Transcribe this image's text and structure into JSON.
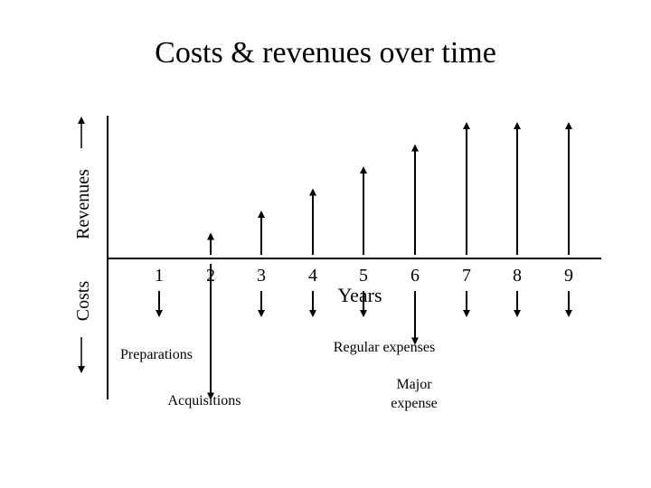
{
  "title": "Costs & revenues over time",
  "axis": {
    "x_label": "Years",
    "y_label_positive": "Revenues",
    "y_label_negative": "Costs",
    "years": [
      "1",
      "2",
      "3",
      "4",
      "5",
      "6",
      "7",
      "8",
      "9"
    ]
  },
  "annotations": {
    "preparations": "Preparations",
    "acquisitions": "Acquisitions",
    "regular_expenses": "Regular expenses",
    "major_expense_line1": "Major",
    "major_expense_line2": "expense"
  },
  "chart_data": {
    "type": "diagram",
    "description_values": {
      "years": [
        1,
        2,
        3,
        4,
        5,
        6,
        7,
        8,
        9
      ],
      "revenues": [
        0,
        1,
        2,
        3,
        4,
        5,
        6,
        6,
        6
      ],
      "costs": [
        2,
        5,
        2,
        2,
        2,
        3,
        2,
        2,
        2
      ]
    }
  }
}
